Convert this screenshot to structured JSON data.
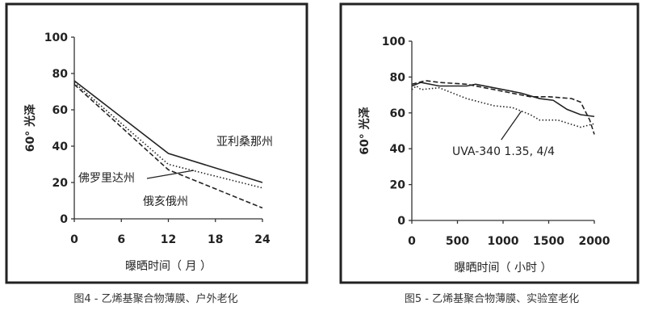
{
  "chart_data": [
    {
      "type": "line",
      "caption": "图4 - 乙烯基聚合物薄膜、户外老化",
      "xlabel": "曝晒时间（ 月 ）",
      "ylabel": "60° 光泽",
      "xlim": [
        0,
        24
      ],
      "ylim": [
        0,
        100
      ],
      "xticks": [
        "0",
        "6",
        "12",
        "18",
        "24"
      ],
      "yticks": [
        "0",
        "20",
        "40",
        "60",
        "80",
        "100"
      ],
      "grid": false,
      "series": [
        {
          "name": "亚利桑那州",
          "style": "solid",
          "x": [
            0,
            12,
            24
          ],
          "y": [
            76,
            36,
            20
          ]
        },
        {
          "name": "佛罗里达州",
          "style": "dotted",
          "x": [
            0,
            12,
            24
          ],
          "y": [
            75,
            30,
            17
          ]
        },
        {
          "name": "俄亥俄州",
          "style": "dashed",
          "x": [
            0,
            12,
            24
          ],
          "y": [
            74,
            27,
            6
          ]
        }
      ]
    },
    {
      "type": "line",
      "caption": "图5 - 乙烯基聚合物薄膜、实验室老化",
      "xlabel": "曝晒时间（ 小时 ）",
      "ylabel": "60° 光泽",
      "xlim": [
        0,
        2000
      ],
      "ylim": [
        0,
        100
      ],
      "xticks": [
        "0",
        "500",
        "1000",
        "1500",
        "2000"
      ],
      "yticks": [
        "0",
        "20",
        "40",
        "60",
        "80",
        "100"
      ],
      "grid": false,
      "annotation": "UVA-340  1.35,  4/4",
      "series": [
        {
          "style": "solid",
          "x": [
            0,
            100,
            300,
            600,
            700,
            1000,
            1200,
            1400,
            1550,
            1700,
            1850,
            2000
          ],
          "y": [
            75,
            77,
            75,
            75,
            76,
            73,
            71,
            68,
            67,
            62,
            59,
            58
          ]
        },
        {
          "style": "dashed",
          "x": [
            0,
            150,
            300,
            600,
            1000,
            1300,
            1500,
            1750,
            1850,
            1950,
            2000
          ],
          "y": [
            76,
            78,
            77,
            76,
            72,
            69,
            69,
            68,
            66,
            56,
            48
          ]
        },
        {
          "style": "dotted",
          "x": [
            0,
            50,
            100,
            300,
            600,
            900,
            1100,
            1300,
            1400,
            1600,
            1850,
            2000
          ],
          "y": [
            73,
            75,
            73,
            74,
            68,
            64,
            63,
            59,
            56,
            56,
            52,
            54
          ]
        }
      ]
    }
  ]
}
